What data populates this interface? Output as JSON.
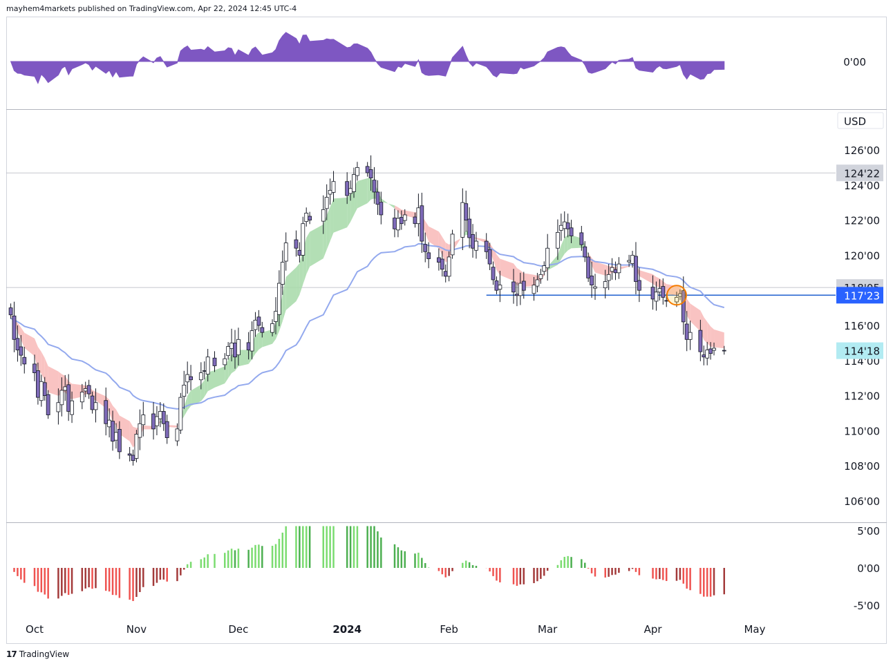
{
  "header": {
    "text": "mayhem4markets published on TradingView.com, Apr 22, 2024 12:45 UTC-4"
  },
  "footer": {
    "logo": "17",
    "brand": "TradingView"
  },
  "colors": {
    "up_candle": "#ffffff",
    "down_candle": "#7e6ab8",
    "candle_border": "#131722",
    "band_up": "#a6d9a8",
    "band_down": "#f8b9b7",
    "ma_line": "#93a9ee",
    "osc_fill": "#7e57c2",
    "hist_up": "#4caf50",
    "hist_up_light": "#7bdc70",
    "hist_down": "#ef5350",
    "hist_down_dark": "#a33a3a",
    "support_line": "#1f5fcf",
    "tag_blue": "#2962ff",
    "tag_grey": "#d1d4dc",
    "tag_cyan": "#b2ebf2"
  },
  "chart_data": {
    "type": "candlestick",
    "currency_label": "USD",
    "price_axis": {
      "ticks": [
        "126'00",
        "124'00",
        "122'00",
        "120'00",
        "118'00",
        "116'00",
        "114'00",
        "112'00",
        "110'00",
        "108'00",
        "106'00"
      ],
      "range": [
        105.4,
        127.6
      ]
    },
    "price_tags": [
      {
        "label": "124'22",
        "value": 124.69,
        "style": "grey"
      },
      {
        "label": "118'05",
        "value": 118.16,
        "style": "grey"
      },
      {
        "label": "117'23",
        "value": 117.72,
        "style": "blue"
      },
      {
        "label": "114'18",
        "value": 114.56,
        "style": "cyan"
      }
    ],
    "horizontal_lines": [
      {
        "value": 124.69,
        "style": "thin-grey"
      },
      {
        "value": 118.16,
        "style": "thin-grey"
      },
      {
        "value": 117.72,
        "style": "support-blue",
        "from_date": "2024-02-12"
      }
    ],
    "highlight_circle_date": "2024-04-08",
    "x_axis": {
      "labels": [
        {
          "label": "Oct",
          "date": "2023-10-02"
        },
        {
          "label": "Nov",
          "date": "2023-11-01"
        },
        {
          "label": "Dec",
          "date": "2023-12-01"
        },
        {
          "label": "2024",
          "date": "2024-01-02",
          "bold": true
        },
        {
          "label": "Feb",
          "date": "2024-02-01"
        },
        {
          "label": "Mar",
          "date": "2024-03-01"
        },
        {
          "label": "Apr",
          "date": "2024-04-01"
        },
        {
          "label": "May",
          "date": "2024-05-01"
        }
      ]
    },
    "top_panel": {
      "label": "0'00"
    },
    "bottom_panel": {
      "ticks": [
        "5'00",
        "0'00",
        "-5'00"
      ],
      "range": [
        -6.0,
        6.0
      ]
    },
    "closes": [
      {
        "d": "2023-09-25",
        "c": 116.6
      },
      {
        "d": "2023-09-26",
        "c": 115.2
      },
      {
        "d": "2023-09-27",
        "c": 114.6
      },
      {
        "d": "2023-09-28",
        "c": 114.3
      },
      {
        "d": "2023-09-29",
        "c": 113.8
      },
      {
        "d": "2023-10-02",
        "c": 113.3
      },
      {
        "d": "2023-10-03",
        "c": 111.9
      },
      {
        "d": "2023-10-04",
        "c": 112.8
      },
      {
        "d": "2023-10-05",
        "c": 112.0
      },
      {
        "d": "2023-10-06",
        "c": 110.9
      },
      {
        "d": "2023-10-09",
        "c": 111.6
      },
      {
        "d": "2023-10-10",
        "c": 112.3
      },
      {
        "d": "2023-10-11",
        "c": 112.5
      },
      {
        "d": "2023-10-12",
        "c": 111.1
      },
      {
        "d": "2023-10-13",
        "c": 111.7
      },
      {
        "d": "2023-10-16",
        "c": 112.2
      },
      {
        "d": "2023-10-17",
        "c": 112.4
      },
      {
        "d": "2023-10-18",
        "c": 112.1
      },
      {
        "d": "2023-10-19",
        "c": 111.2
      },
      {
        "d": "2023-10-20",
        "c": 111.6
      },
      {
        "d": "2023-10-23",
        "c": 110.4
      },
      {
        "d": "2023-10-24",
        "c": 110.6
      },
      {
        "d": "2023-10-25",
        "c": 109.4
      },
      {
        "d": "2023-10-26",
        "c": 109.9
      },
      {
        "d": "2023-10-27",
        "c": 108.8
      },
      {
        "d": "2023-10-30",
        "c": 108.6
      },
      {
        "d": "2023-10-31",
        "c": 108.3
      },
      {
        "d": "2023-11-01",
        "c": 109.8
      },
      {
        "d": "2023-11-02",
        "c": 110.4
      },
      {
        "d": "2023-11-03",
        "c": 110.9
      },
      {
        "d": "2023-11-06",
        "c": 110.1
      },
      {
        "d": "2023-11-07",
        "c": 110.8
      },
      {
        "d": "2023-11-08",
        "c": 111.1
      },
      {
        "d": "2023-11-09",
        "c": 110.4
      },
      {
        "d": "2023-11-10",
        "c": 109.6
      },
      {
        "d": "2023-11-13",
        "c": 110.1
      },
      {
        "d": "2023-11-14",
        "c": 111.9
      },
      {
        "d": "2023-11-15",
        "c": 112.6
      },
      {
        "d": "2023-11-16",
        "c": 113.2
      },
      {
        "d": "2023-11-17",
        "c": 112.9
      },
      {
        "d": "2023-11-20",
        "c": 113.3
      },
      {
        "d": "2023-11-21",
        "c": 113.4
      },
      {
        "d": "2023-11-22",
        "c": 114.2
      },
      {
        "d": "2023-11-24",
        "c": 113.7
      },
      {
        "d": "2023-11-27",
        "c": 114.1
      },
      {
        "d": "2023-11-28",
        "c": 114.8
      },
      {
        "d": "2023-11-29",
        "c": 115.0
      },
      {
        "d": "2023-11-30",
        "c": 114.2
      },
      {
        "d": "2023-12-01",
        "c": 115.2
      },
      {
        "d": "2023-12-04",
        "c": 114.6
      },
      {
        "d": "2023-12-05",
        "c": 115.7
      },
      {
        "d": "2023-12-06",
        "c": 116.3
      },
      {
        "d": "2023-12-07",
        "c": 116.0
      },
      {
        "d": "2023-12-08",
        "c": 115.6
      },
      {
        "d": "2023-12-11",
        "c": 116.1
      },
      {
        "d": "2023-12-12",
        "c": 116.8
      },
      {
        "d": "2023-12-13",
        "c": 118.4
      },
      {
        "d": "2023-12-14",
        "c": 119.6
      },
      {
        "d": "2023-12-15",
        "c": 120.7
      },
      {
        "d": "2023-12-18",
        "c": 120.4
      },
      {
        "d": "2023-12-19",
        "c": 120.0
      },
      {
        "d": "2023-12-20",
        "c": 121.8
      },
      {
        "d": "2023-12-21",
        "c": 122.4
      },
      {
        "d": "2023-12-22",
        "c": 122.0
      },
      {
        "d": "2023-12-26",
        "c": 122.6
      },
      {
        "d": "2023-12-27",
        "c": 123.3
      },
      {
        "d": "2023-12-28",
        "c": 123.7
      },
      {
        "d": "2023-12-29",
        "c": 124.2
      },
      {
        "d": "2024-01-02",
        "c": 123.4
      },
      {
        "d": "2024-01-03",
        "c": 123.8
      },
      {
        "d": "2024-01-04",
        "c": 124.6
      },
      {
        "d": "2024-01-05",
        "c": 125.0
      },
      {
        "d": "2024-01-08",
        "c": 124.7
      },
      {
        "d": "2024-01-09",
        "c": 124.4
      },
      {
        "d": "2024-01-10",
        "c": 123.6
      },
      {
        "d": "2024-01-11",
        "c": 122.9
      },
      {
        "d": "2024-01-12",
        "c": 122.3
      },
      {
        "d": "2024-01-16",
        "c": 121.5
      },
      {
        "d": "2024-01-17",
        "c": 122.1
      },
      {
        "d": "2024-01-18",
        "c": 121.8
      },
      {
        "d": "2024-01-19",
        "c": 122.3
      },
      {
        "d": "2024-01-22",
        "c": 121.8
      },
      {
        "d": "2024-01-23",
        "c": 122.7
      },
      {
        "d": "2024-01-24",
        "c": 120.8
      },
      {
        "d": "2024-01-25",
        "c": 120.2
      },
      {
        "d": "2024-01-26",
        "c": 119.8
      },
      {
        "d": "2024-01-29",
        "c": 119.6
      },
      {
        "d": "2024-01-30",
        "c": 119.2
      },
      {
        "d": "2024-01-31",
        "c": 118.8
      },
      {
        "d": "2024-02-01",
        "c": 119.9
      },
      {
        "d": "2024-02-02",
        "c": 121.2
      },
      {
        "d": "2024-02-05",
        "c": 123.0
      },
      {
        "d": "2024-02-06",
        "c": 122.0
      },
      {
        "d": "2024-02-07",
        "c": 121.0
      },
      {
        "d": "2024-02-08",
        "c": 120.4
      },
      {
        "d": "2024-02-09",
        "c": 120.8
      },
      {
        "d": "2024-02-12",
        "c": 120.2
      },
      {
        "d": "2024-02-13",
        "c": 119.5
      },
      {
        "d": "2024-02-14",
        "c": 118.6
      },
      {
        "d": "2024-02-15",
        "c": 118.0
      },
      {
        "d": "2024-02-16",
        "c": 118.3
      },
      {
        "d": "2024-02-20",
        "c": 117.9
      },
      {
        "d": "2024-02-21",
        "c": 117.7
      },
      {
        "d": "2024-02-22",
        "c": 118.4
      },
      {
        "d": "2024-02-23",
        "c": 118.0
      },
      {
        "d": "2024-02-26",
        "c": 118.3
      },
      {
        "d": "2024-02-27",
        "c": 118.6
      },
      {
        "d": "2024-02-28",
        "c": 118.9
      },
      {
        "d": "2024-02-29",
        "c": 119.4
      },
      {
        "d": "2024-03-01",
        "c": 120.4
      },
      {
        "d": "2024-03-04",
        "c": 121.3
      },
      {
        "d": "2024-03-05",
        "c": 121.7
      },
      {
        "d": "2024-03-06",
        "c": 121.9
      },
      {
        "d": "2024-03-07",
        "c": 121.5
      },
      {
        "d": "2024-03-08",
        "c": 121.1
      },
      {
        "d": "2024-03-11",
        "c": 120.6
      },
      {
        "d": "2024-03-12",
        "c": 119.9
      },
      {
        "d": "2024-03-13",
        "c": 118.7
      },
      {
        "d": "2024-03-14",
        "c": 118.3
      },
      {
        "d": "2024-03-15",
        "c": 118.2
      },
      {
        "d": "2024-03-18",
        "c": 118.5
      },
      {
        "d": "2024-03-19",
        "c": 118.9
      },
      {
        "d": "2024-03-20",
        "c": 119.3
      },
      {
        "d": "2024-03-21",
        "c": 119.0
      },
      {
        "d": "2024-03-22",
        "c": 119.5
      },
      {
        "d": "2024-03-25",
        "c": 119.7
      },
      {
        "d": "2024-03-26",
        "c": 120.0
      },
      {
        "d": "2024-03-27",
        "c": 118.5
      },
      {
        "d": "2024-03-28",
        "c": 118.0
      },
      {
        "d": "2024-04-01",
        "c": 117.5
      },
      {
        "d": "2024-04-02",
        "c": 117.9
      },
      {
        "d": "2024-04-03",
        "c": 118.1
      },
      {
        "d": "2024-04-04",
        "c": 117.6
      },
      {
        "d": "2024-04-05",
        "c": 117.4
      },
      {
        "d": "2024-04-08",
        "c": 117.6
      },
      {
        "d": "2024-04-09",
        "c": 117.8
      },
      {
        "d": "2024-04-10",
        "c": 116.2
      },
      {
        "d": "2024-04-11",
        "c": 115.2
      },
      {
        "d": "2024-04-12",
        "c": 115.6
      },
      {
        "d": "2024-04-15",
        "c": 114.5
      },
      {
        "d": "2024-04-16",
        "c": 114.2
      },
      {
        "d": "2024-04-17",
        "c": 114.6
      },
      {
        "d": "2024-04-18",
        "c": 114.4
      },
      {
        "d": "2024-04-19",
        "c": 114.7
      },
      {
        "d": "2024-04-22",
        "c": 114.56
      }
    ]
  }
}
